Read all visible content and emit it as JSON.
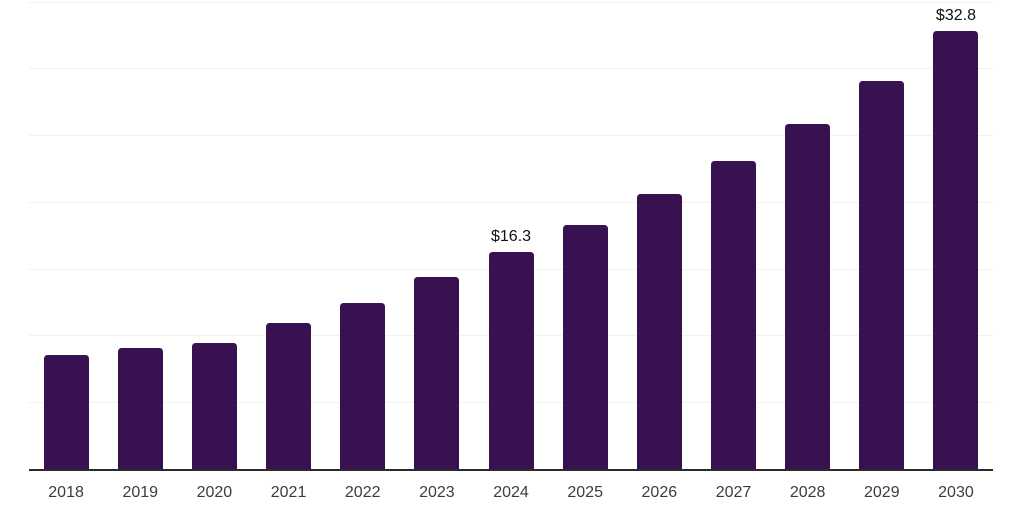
{
  "chart_data": {
    "type": "bar",
    "title": "",
    "xlabel": "",
    "ylabel": "",
    "categories": [
      "2018",
      "2019",
      "2020",
      "2021",
      "2022",
      "2023",
      "2024",
      "2025",
      "2026",
      "2027",
      "2028",
      "2029",
      "2030"
    ],
    "values": [
      8.6,
      9.1,
      9.5,
      11.0,
      12.5,
      14.4,
      16.3,
      18.3,
      20.6,
      23.1,
      25.9,
      29.1,
      32.8
    ],
    "labels": [
      "",
      "",
      "",
      "",
      "",
      "",
      "$16.3",
      "",
      "",
      "",
      "",
      "",
      "$32.8"
    ],
    "ylim": [
      0,
      35
    ],
    "gridline_step": 5,
    "grid": "horizontal-only",
    "y_axis_tick_labels": "none",
    "legend": "none",
    "colors": {
      "bar": "#371150",
      "axis_line": "#2b2b2b",
      "gridline": "#f1f1f1",
      "value_label": "#111111",
      "tick_label": "#3c3c3c",
      "background": "#ffffff"
    }
  }
}
